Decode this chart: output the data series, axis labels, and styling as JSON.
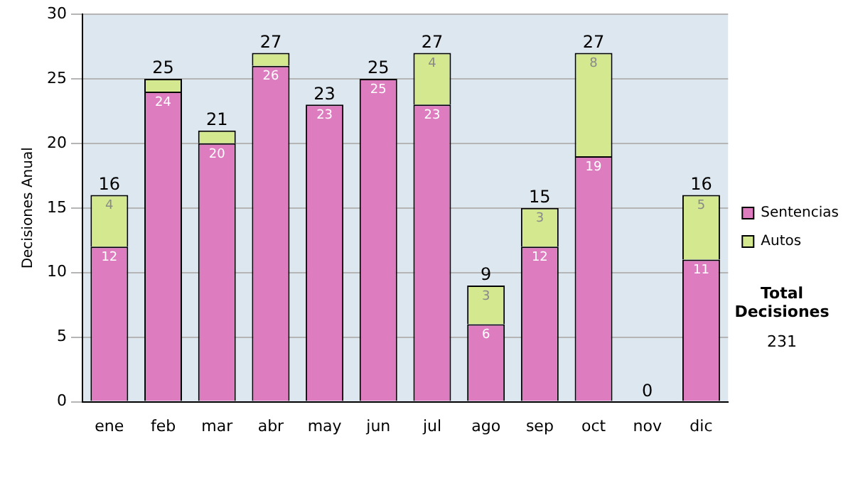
{
  "chart_data": {
    "type": "bar",
    "stacked": true,
    "ylabel": "Decisiones Anual",
    "categories": [
      "ene",
      "feb",
      "mar",
      "abr",
      "may",
      "jun",
      "jul",
      "ago",
      "sep",
      "oct",
      "nov",
      "dic"
    ],
    "series": [
      {
        "name": "Sentencias",
        "color": "#de7cc0",
        "values": [
          12,
          24,
          20,
          26,
          23,
          25,
          23,
          6,
          12,
          19,
          0,
          11
        ],
        "value_labels": [
          "12",
          "24",
          "20",
          "26",
          "23",
          "25",
          "23",
          "6",
          "12",
          "19",
          null,
          "11"
        ]
      },
      {
        "name": "Autos",
        "color": "#d3e88f",
        "values": [
          4,
          1,
          1,
          1,
          0,
          0,
          4,
          3,
          3,
          8,
          0,
          5
        ],
        "value_labels": [
          "4",
          null,
          null,
          null,
          null,
          null,
          "4",
          "3",
          "3",
          "8",
          null,
          "5"
        ]
      }
    ],
    "totals": [
      "16",
      "25",
      "21",
      "27",
      "23",
      "25",
      "27",
      "9",
      "15",
      "27",
      "0",
      "16"
    ],
    "ylim": [
      0,
      30
    ],
    "yticks": [
      0,
      5,
      10,
      15,
      20,
      25,
      30
    ],
    "grid": "y",
    "legend": "right",
    "annotations": [
      "Total Decisiones",
      "231"
    ]
  }
}
